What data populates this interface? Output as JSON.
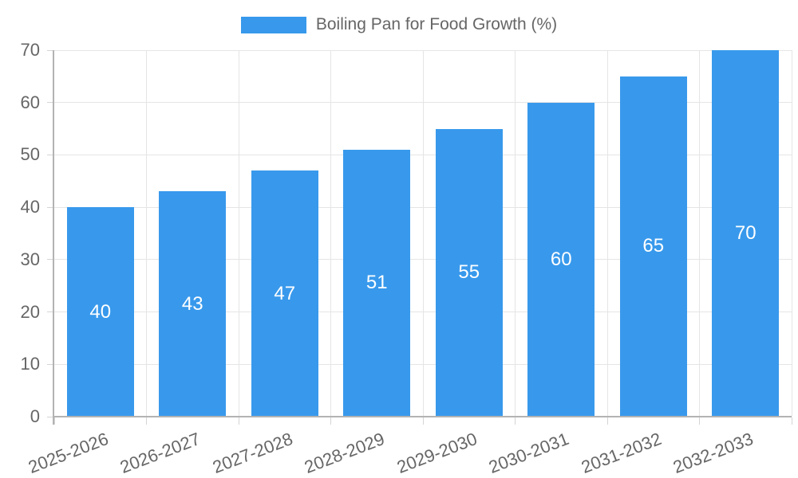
{
  "legend": {
    "label": "Boiling Pan for Food Growth (%)"
  },
  "chart_data": {
    "type": "bar",
    "title": "Boiling Pan for Food Growth (%)",
    "series_name": "Boiling Pan for Food Growth (%)",
    "categories": [
      "2025-2026",
      "2026-2027",
      "2027-2028",
      "2028-2029",
      "2029-2030",
      "2030-2031",
      "2031-2032",
      "2032-2033"
    ],
    "values": [
      40,
      43,
      47,
      51,
      55,
      60,
      65,
      70
    ],
    "bar_labels": [
      "40",
      "43",
      "47",
      "51",
      "55",
      "60",
      "65",
      "70"
    ],
    "yticks": [
      0,
      10,
      20,
      30,
      40,
      50,
      60,
      70
    ],
    "ylim": [
      0,
      70
    ],
    "xlabel": "",
    "ylabel": "",
    "grid": true,
    "legend_position": "top-center",
    "x_tick_rotation_deg": -21,
    "colors": {
      "bar": "#3899EC",
      "bar_label": "#FFFFFF",
      "tick_label": "#666666",
      "legend_label": "#666666",
      "grid_line": "#E5E5E5",
      "tick_mark": "#D4D4D4",
      "axis_line": "#B3B3B3",
      "background": "#FFFFFF"
    }
  }
}
